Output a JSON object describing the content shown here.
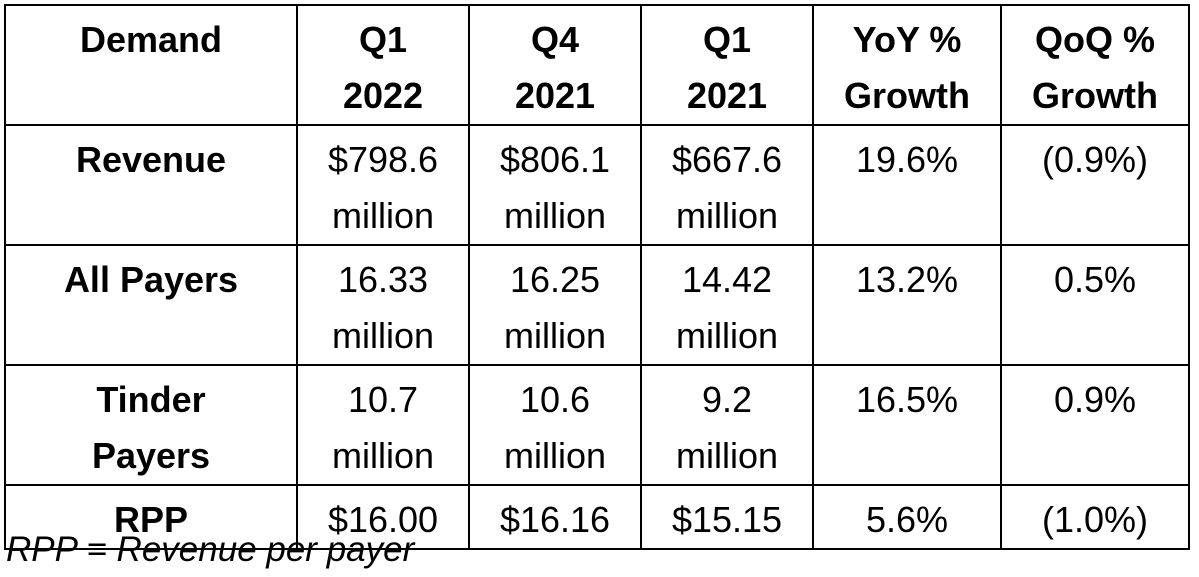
{
  "table": {
    "headers": [
      [
        "Demand"
      ],
      [
        "Q1",
        "2022"
      ],
      [
        "Q4",
        "2021"
      ],
      [
        "Q1",
        "2021"
      ],
      [
        "YoY %",
        "Growth"
      ],
      [
        "QoQ %",
        "Growth"
      ]
    ],
    "rows": [
      {
        "label": [
          "Revenue"
        ],
        "cells": [
          [
            "$798.6",
            "million"
          ],
          [
            "$806.1",
            "million"
          ],
          [
            "$667.6",
            "million"
          ],
          [
            "19.6%"
          ],
          [
            "(0.9%)"
          ]
        ]
      },
      {
        "label": [
          "All Payers"
        ],
        "cells": [
          [
            "16.33",
            "million"
          ],
          [
            "16.25",
            "million"
          ],
          [
            "14.42",
            "million"
          ],
          [
            "13.2%"
          ],
          [
            "0.5%"
          ]
        ]
      },
      {
        "label": [
          "Tinder",
          "Payers"
        ],
        "cells": [
          [
            "10.7",
            "million"
          ],
          [
            "10.6",
            "million"
          ],
          [
            "9.2",
            "million"
          ],
          [
            "16.5%"
          ],
          [
            "0.9%"
          ]
        ]
      },
      {
        "label": [
          "RPP"
        ],
        "cells": [
          [
            "$16.00"
          ],
          [
            "$16.16"
          ],
          [
            "$15.15"
          ],
          [
            "5.6%"
          ],
          [
            "(1.0%)"
          ]
        ]
      }
    ]
  },
  "footnote": "RPP = Revenue per payer"
}
